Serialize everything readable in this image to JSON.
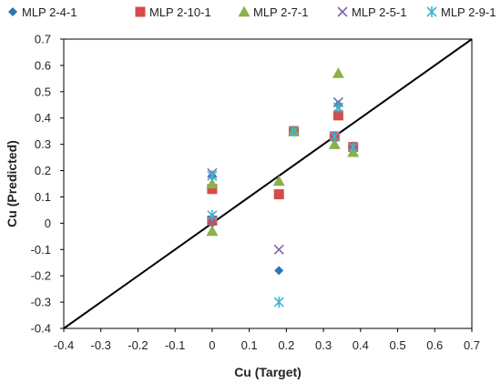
{
  "chart_data": {
    "type": "scatter",
    "xlabel": "Cu (Target)",
    "ylabel": "Cu (Predicted)",
    "xlim": [
      -0.4,
      0.7
    ],
    "ylim": [
      -0.4,
      0.7
    ],
    "x_ticks": [
      "-0.4",
      "-0.3",
      "-0.2",
      "-0.1",
      "0",
      "0.1",
      "0.2",
      "0.3",
      "0.4",
      "0.5",
      "0.6",
      "0.7"
    ],
    "y_ticks": [
      "0.7",
      "0.6",
      "0.5",
      "0.4",
      "0.3",
      "0.2",
      "0.1",
      "0",
      "-0.1",
      "-0.2",
      "-0.3",
      "-0.4"
    ],
    "legend_position": "top",
    "grid": false,
    "reference_line": {
      "from": [
        -0.4,
        -0.4
      ],
      "to": [
        0.7,
        0.7
      ],
      "color": "#000000"
    },
    "series": [
      {
        "name": "MLP 2-4-1",
        "marker": "diamond",
        "color": "#2E75B6",
        "points": [
          [
            0,
            0.18
          ],
          [
            0,
            0.13
          ],
          [
            0,
            0.02
          ],
          [
            0,
            0.0
          ],
          [
            0.18,
            -0.18
          ],
          [
            0.22,
            0.35
          ],
          [
            0.33,
            0.33
          ],
          [
            0.34,
            0.45
          ],
          [
            0.38,
            0.29
          ]
        ]
      },
      {
        "name": "MLP 2-10-1",
        "marker": "square",
        "color": "#D64B4B",
        "points": [
          [
            0,
            0.13
          ],
          [
            0,
            0.01
          ],
          [
            0.18,
            0.11
          ],
          [
            0.22,
            0.35
          ],
          [
            0.33,
            0.33
          ],
          [
            0.34,
            0.41
          ],
          [
            0.38,
            0.29
          ]
        ]
      },
      {
        "name": "MLP 2-7-1",
        "marker": "triangle",
        "color": "#8DB04A",
        "points": [
          [
            0,
            0.15
          ],
          [
            0,
            -0.03
          ],
          [
            0.18,
            0.16
          ],
          [
            0.22,
            0.35
          ],
          [
            0.33,
            0.3
          ],
          [
            0.34,
            0.57
          ],
          [
            0.38,
            0.27
          ]
        ]
      },
      {
        "name": "MLP 2-5-1",
        "marker": "x",
        "color": "#7F63A8",
        "points": [
          [
            0,
            0.19
          ],
          [
            0,
            0.01
          ],
          [
            0.18,
            -0.1
          ],
          [
            0.22,
            0.35
          ],
          [
            0.33,
            0.33
          ],
          [
            0.34,
            0.46
          ],
          [
            0.38,
            0.29
          ]
        ]
      },
      {
        "name": "MLP 2-9-1",
        "marker": "asterisk",
        "color": "#3CB5CF",
        "points": [
          [
            0,
            0.18
          ],
          [
            0,
            0.03
          ],
          [
            0.18,
            -0.3
          ],
          [
            0.22,
            0.35
          ],
          [
            0.33,
            0.33
          ],
          [
            0.34,
            0.44
          ],
          [
            0.38,
            0.29
          ]
        ]
      }
    ]
  }
}
